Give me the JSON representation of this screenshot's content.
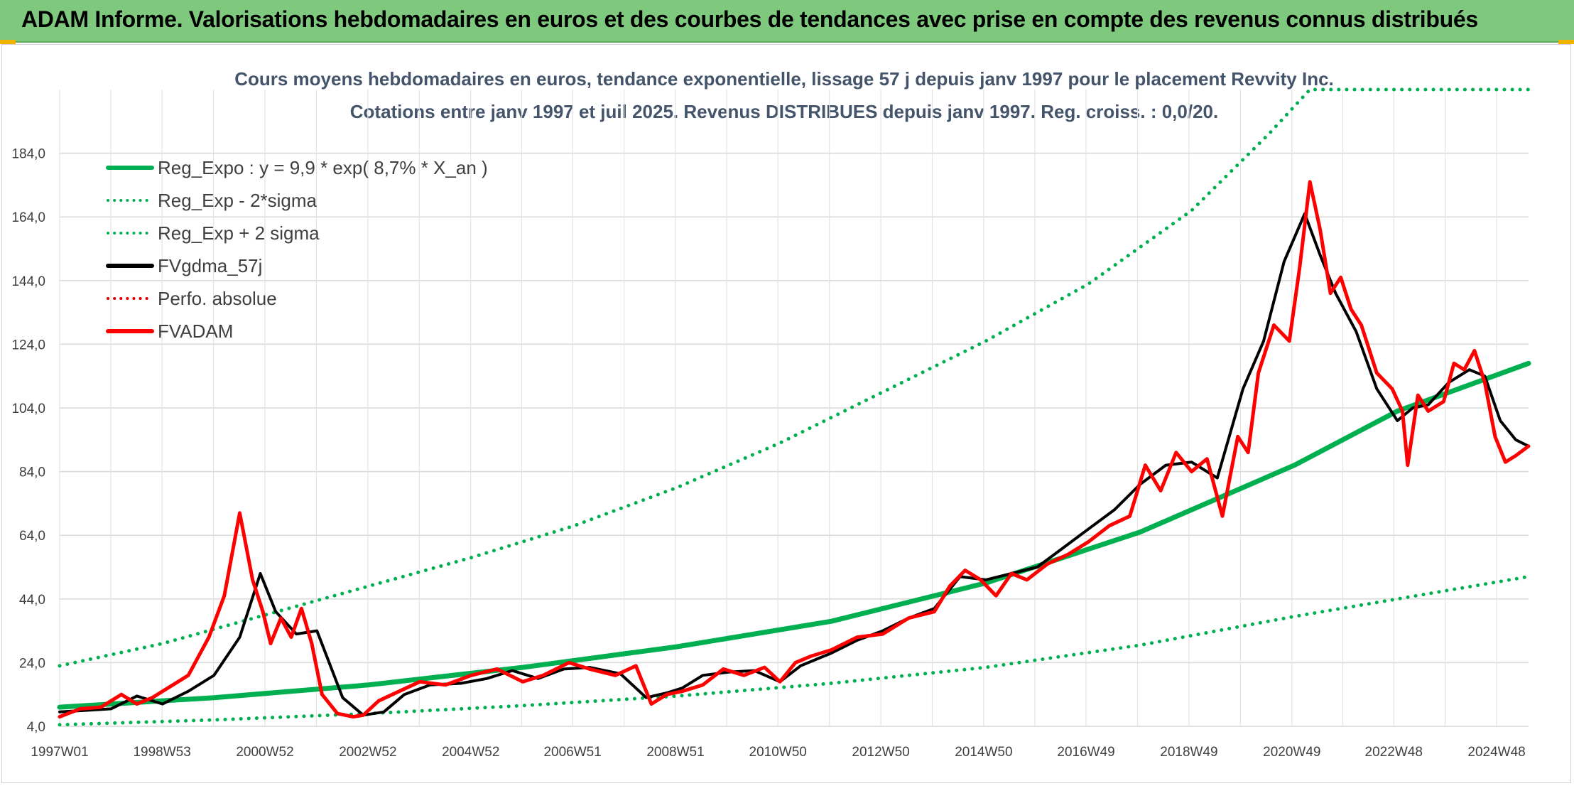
{
  "banner": {
    "title": "ADAM Informe. Valorisations hebdomadaires en euros et des courbes de tendances avec prise en compte des revenus connus distribués"
  },
  "chart_data": {
    "type": "line",
    "title_line1": "Cours moyens hebdomadaires en euros, tendance exponentielle, lissage 57 j depuis janv 1997 pour le placement Revvity Inc.",
    "title_line2": "Cotations entre janv 1997 et juil 2025. Revenus DISTRIBUES depuis janv 1997. Reg. croiss. : 0,0/20.",
    "xlabel": "",
    "ylabel": "",
    "x_range": [
      1997.0,
      2025.55
    ],
    "ylim": [
      4.0,
      204.0
    ],
    "y_ticks": [
      "184,0",
      "164,0",
      "144,0",
      "124,0",
      "104,0",
      "84,0",
      "64,0",
      "44,0",
      "24,0",
      "4,0"
    ],
    "y_tick_values": [
      184,
      164,
      144,
      124,
      104,
      84,
      64,
      44,
      24,
      4
    ],
    "x_ticks": [
      "1997W01",
      "1998W53",
      "2000W52",
      "2002W52",
      "2004W52",
      "2006W51",
      "2008W51",
      "2010W50",
      "2012W50",
      "2014W50",
      "2016W49",
      "2018W49",
      "2020W49",
      "2022W48",
      "2024W48"
    ],
    "x_tick_values": [
      1997.0,
      1998.99,
      2000.99,
      2002.99,
      2004.99,
      2006.97,
      2008.97,
      2010.96,
      2012.96,
      2014.96,
      2016.95,
      2018.95,
      2020.95,
      2022.93,
      2024.93
    ],
    "grid": true,
    "legend_position": "top-left",
    "legend": [
      {
        "key": "reg",
        "label": "Reg_Expo : y = 9,9 * exp( 8,7% *  X_an )",
        "color": "#00b050",
        "style": "solid"
      },
      {
        "key": "low",
        "label": "Reg_Exp - 2*sigma",
        "color": "#00b050",
        "style": "dotted"
      },
      {
        "key": "high",
        "label": "Reg_Exp + 2 sigma",
        "color": "#00b050",
        "style": "dotted"
      },
      {
        "key": "gdma",
        "label": "FVgdma_57j",
        "color": "#000000",
        "style": "solid"
      },
      {
        "key": "perfo",
        "label": "Perfo. absolue",
        "color": "#e00000",
        "style": "dotted"
      },
      {
        "key": "fvadam",
        "label": "FVADAM",
        "color": "#ff0000",
        "style": "solid"
      }
    ],
    "series": [
      {
        "key": "reg",
        "name": "Reg_Expo : y = 9,9 * exp( 8,7% *  X_an )",
        "x": [
          1997.0,
          2000.0,
          2003.0,
          2006.0,
          2009.0,
          2012.0,
          2015.0,
          2018.0,
          2021.0,
          2023.0,
          2025.55
        ],
        "y": [
          10.0,
          13.0,
          17.0,
          22.5,
          29.0,
          37.0,
          49.0,
          65.0,
          86.0,
          103.0,
          118.0
        ]
      },
      {
        "key": "low",
        "name": "Reg_Exp - 2*sigma",
        "x": [
          1997.0,
          2000.0,
          2003.0,
          2006.0,
          2009.0,
          2012.0,
          2015.0,
          2018.0,
          2021.0,
          2023.0,
          2025.55
        ],
        "y": [
          4.5,
          6.0,
          8.0,
          10.5,
          13.5,
          17.5,
          22.5,
          29.5,
          38.5,
          44.0,
          51.0
        ]
      },
      {
        "key": "high",
        "name": "Reg_Exp + 2 sigma",
        "x": [
          1997.0,
          1999.0,
          2001.0,
          2003.0,
          2005.0,
          2007.0,
          2009.0,
          2011.0,
          2013.0,
          2015.0,
          2017.0,
          2019.0,
          2020.5,
          2021.3,
          2025.55
        ],
        "y": [
          23.0,
          30.0,
          39.0,
          48.0,
          57.0,
          67.0,
          79.0,
          93.0,
          109.0,
          125.0,
          143.0,
          166.0,
          190.0,
          204.0,
          204.0
        ]
      },
      {
        "key": "gdma",
        "name": "FVgdma_57j",
        "x": [
          1997.0,
          1997.5,
          1998.0,
          1998.5,
          1999.0,
          1999.5,
          2000.0,
          2000.5,
          2000.9,
          2001.2,
          2001.6,
          2002.0,
          2002.5,
          2002.9,
          2003.3,
          2003.7,
          2004.2,
          2004.8,
          2005.3,
          2005.8,
          2006.3,
          2006.8,
          2007.3,
          2007.9,
          2008.4,
          2008.8,
          2009.1,
          2009.5,
          2010.0,
          2010.5,
          2011.0,
          2011.4,
          2011.7,
          2012.0,
          2012.5,
          2013.0,
          2013.5,
          2014.0,
          2014.5,
          2015.0,
          2015.5,
          2016.0,
          2016.5,
          2017.0,
          2017.5,
          2018.0,
          2018.5,
          2019.0,
          2019.5,
          2020.0,
          2020.4,
          2020.8,
          2021.2,
          2021.5,
          2021.8,
          2022.2,
          2022.6,
          2023.0,
          2023.3,
          2023.6,
          2024.0,
          2024.4,
          2024.7,
          2025.0,
          2025.3,
          2025.55
        ],
        "y": [
          8.5,
          9.0,
          9.5,
          13.5,
          11.0,
          15.0,
          20.0,
          32.0,
          52.0,
          40.0,
          33.0,
          34.0,
          13.0,
          7.5,
          8.5,
          14.0,
          17.0,
          17.5,
          19.0,
          21.5,
          19.0,
          22.0,
          22.5,
          20.5,
          13.0,
          14.5,
          16.0,
          20.0,
          21.0,
          21.5,
          18.0,
          23.0,
          25.0,
          27.0,
          31.0,
          34.0,
          38.0,
          41.0,
          51.0,
          50.0,
          52.0,
          54.0,
          60.0,
          66.0,
          72.0,
          80.0,
          86.0,
          87.0,
          82.0,
          110.0,
          125.0,
          150.0,
          165.0,
          152.0,
          140.0,
          128.0,
          110.0,
          100.0,
          104.0,
          105.0,
          112.0,
          116.0,
          114.0,
          100.0,
          94.0,
          92.0
        ]
      },
      {
        "key": "fvadam",
        "name": "FVADAM",
        "x": [
          1997.0,
          1997.4,
          1997.8,
          1998.2,
          1998.5,
          1998.8,
          1999.1,
          1999.5,
          1999.9,
          2000.2,
          2000.5,
          2000.75,
          2000.95,
          2001.1,
          2001.3,
          2001.5,
          2001.7,
          2001.9,
          2002.1,
          2002.4,
          2002.7,
          2002.9,
          2003.2,
          2003.6,
          2004.0,
          2004.5,
          2005.0,
          2005.5,
          2006.0,
          2006.4,
          2006.9,
          2007.3,
          2007.8,
          2008.2,
          2008.5,
          2008.8,
          2009.1,
          2009.5,
          2009.9,
          2010.3,
          2010.7,
          2011.0,
          2011.3,
          2011.6,
          2012.0,
          2012.5,
          2013.0,
          2013.5,
          2014.0,
          2014.3,
          2014.6,
          2014.9,
          2015.2,
          2015.5,
          2015.8,
          2016.2,
          2016.6,
          2017.0,
          2017.4,
          2017.8,
          2018.1,
          2018.4,
          2018.7,
          2019.0,
          2019.3,
          2019.6,
          2019.9,
          2020.1,
          2020.3,
          2020.6,
          2020.9,
          2021.1,
          2021.3,
          2021.5,
          2021.7,
          2021.9,
          2022.1,
          2022.3,
          2022.6,
          2022.9,
          2023.1,
          2023.2,
          2023.4,
          2023.6,
          2023.9,
          2024.1,
          2024.3,
          2024.5,
          2024.7,
          2024.9,
          2025.1,
          2025.3,
          2025.55
        ],
        "y": [
          7.0,
          9.5,
          10.0,
          14.0,
          11.0,
          13.0,
          16.0,
          20.0,
          32.0,
          45.0,
          71.0,
          50.0,
          40.0,
          30.0,
          38.0,
          32.0,
          41.0,
          30.0,
          14.0,
          8.0,
          7.0,
          7.5,
          12.0,
          15.0,
          18.0,
          17.0,
          20.0,
          22.0,
          18.0,
          20.0,
          24.0,
          22.0,
          20.0,
          23.0,
          11.0,
          14.0,
          15.0,
          17.0,
          22.0,
          20.0,
          22.5,
          18.0,
          24.0,
          26.0,
          28.0,
          32.0,
          33.0,
          38.0,
          40.0,
          48.0,
          53.0,
          50.0,
          45.0,
          52.0,
          50.0,
          55.0,
          58.0,
          62.0,
          67.0,
          70.0,
          86.0,
          78.0,
          90.0,
          84.0,
          88.0,
          70.0,
          95.0,
          90.0,
          115.0,
          130.0,
          125.0,
          148.0,
          175.0,
          160.0,
          140.0,
          145.0,
          135.0,
          130.0,
          115.0,
          110.0,
          103.0,
          86.0,
          108.0,
          103.0,
          106.0,
          118.0,
          116.0,
          122.0,
          112.0,
          95.0,
          87.0,
          89.0,
          92.0
        ]
      }
    ]
  }
}
